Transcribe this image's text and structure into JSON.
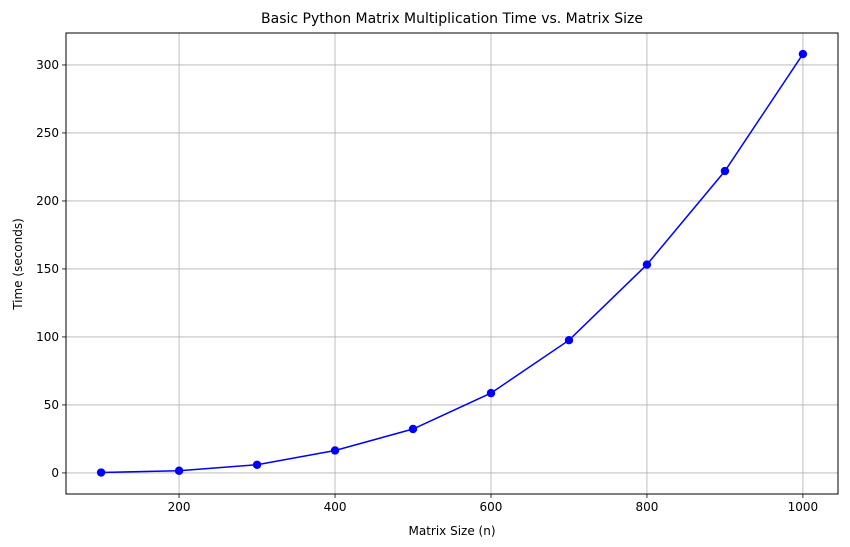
{
  "chart_data": {
    "type": "line",
    "title": "Basic Python Matrix Multiplication Time vs. Matrix Size",
    "xlabel": "Matrix Size (n)",
    "ylabel": "Time (seconds)",
    "x": [
      100,
      200,
      300,
      400,
      500,
      600,
      700,
      800,
      900,
      1000
    ],
    "series": [
      {
        "values": [
          0.3,
          1.6,
          6.0,
          16.5,
          32.3,
          58.7,
          97.6,
          153.2,
          222.0,
          308.0
        ],
        "color": "#0000ff",
        "marker": "circle"
      }
    ],
    "xlim": [
      55,
      1045
    ],
    "ylim": [
      -15.5,
      323.5
    ],
    "xticks": [
      200,
      400,
      600,
      800,
      1000
    ],
    "yticks": [
      0,
      50,
      100,
      150,
      200,
      250,
      300
    ],
    "xtick_labels": [
      "200",
      "400",
      "600",
      "800",
      "1000"
    ],
    "ytick_labels": [
      "0",
      "50",
      "100",
      "150",
      "200",
      "250",
      "300"
    ],
    "grid": true,
    "grid_color": "#b0b0b0"
  }
}
